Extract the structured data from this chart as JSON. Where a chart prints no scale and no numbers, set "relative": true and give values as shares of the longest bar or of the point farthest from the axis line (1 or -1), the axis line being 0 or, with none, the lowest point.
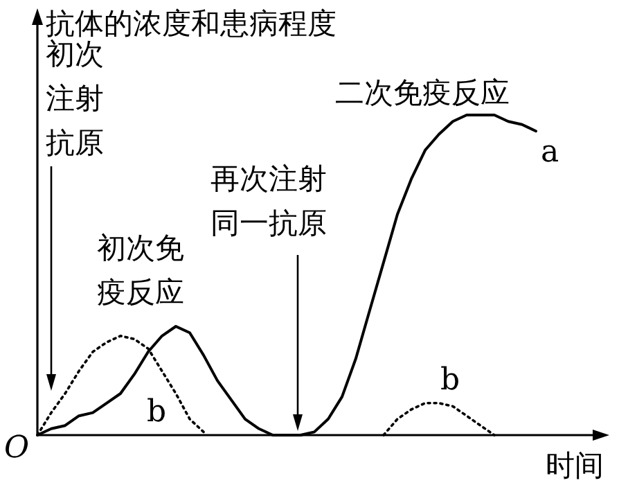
{
  "chart_data": {
    "type": "line",
    "relative": true,
    "title": "抗体的浓度和患病程度",
    "xlabel": "时间",
    "categories": [
      null,
      null,
      null,
      null,
      null,
      null,
      null,
      null,
      null,
      null,
      null,
      null,
      null,
      null,
      null,
      null,
      null,
      null,
      null,
      null,
      null,
      null,
      null,
      null,
      null,
      null,
      null,
      null,
      null,
      null,
      null,
      null,
      null,
      null,
      null,
      null,
      null
    ],
    "series": [
      {
        "name": "a",
        "color": "#000000",
        "line_style": "solid",
        "values": [
          0,
          0.02,
          0.03,
          0.06,
          0.07,
          0.1,
          0.13,
          0.19,
          0.26,
          0.31,
          0.34,
          0.32,
          0.25,
          0.17,
          0.11,
          0.05,
          0.02,
          0,
          0,
          0,
          0.01,
          0.05,
          0.12,
          0.24,
          0.39,
          0.54,
          0.69,
          0.8,
          0.89,
          0.94,
          0.98,
          1,
          1,
          1,
          0.98,
          0.97,
          0.95
        ]
      },
      {
        "name": "b",
        "color": "#000000",
        "line_style": "dotted",
        "values": [
          0,
          0.07,
          0.13,
          0.2,
          0.26,
          0.29,
          0.31,
          0.3,
          0.27,
          0.2,
          0.13,
          0.05,
          0.01,
          null,
          null,
          null,
          null,
          null,
          null,
          null,
          null,
          null,
          null,
          null,
          null,
          0,
          0.05,
          0.08,
          0.1,
          0.1,
          0.09,
          0.06,
          0.03,
          0,
          null,
          null,
          null
        ]
      }
    ],
    "annotations": [
      "O",
      "初次注射抗原",
      "初次免疫反应",
      "再次注射同一抗原",
      "二次免疫反应"
    ]
  }
}
